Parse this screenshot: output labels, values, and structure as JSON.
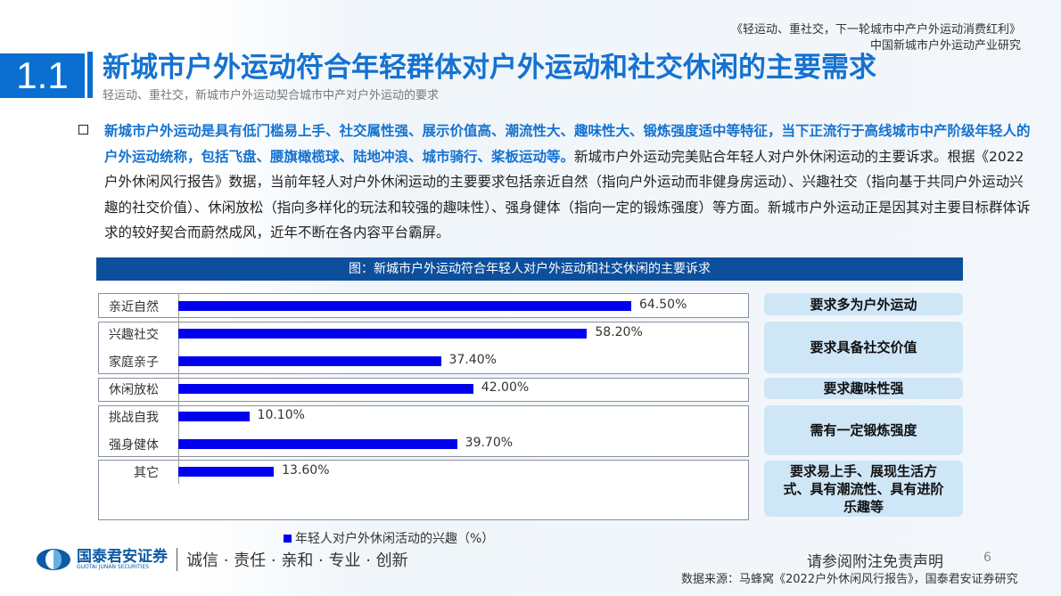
{
  "header": {
    "section_number": "1.1",
    "title": "新城市户外运动符合年轻群体对户外运动和社交休闲的主要需求",
    "subtitle": "轻运动、重社交，新城市户外运动契合城市中产对户外运动的要求",
    "report_title": "《轻运动、重社交，下一轮城市中产户外运动消费红利》",
    "report_subtitle": "中国新城市户外运动产业研究"
  },
  "body": {
    "bold_text": "新城市户外运动是具有低门槛易上手、社交属性强、展示价值高、潮流性大、趣味性大、锻炼强度适中等特征，当下正流行于高线城市中产阶级年轻人的户外运动统称，包括飞盘、腰旗橄榄球、陆地冲浪、城市骑行、桨板运动等。",
    "normal_text": "新城市户外运动完美贴合年轻人对户外休闲运动的主要诉求。根据《2022户外休闲风行报告》数据，当前年轻人对户外休闲运动的主要要求包括亲近自然（指向户外运动而非健身房运动）、兴趣社交（指向基于共同户外运动兴趣的社交价值）、休闲放松（指向多样化的玩法和较强的趣味性）、强身健体（指向一定的锻炼强度）等方面。新城市户外运动正是因其对主要目标群体诉求的较好契合而蔚然成风，近年不断在各内容平台霸屏。"
  },
  "chart_data": {
    "type": "bar",
    "orientation": "horizontal",
    "title": "图：新城市户外运动符合年轻人对户外运动和社交休闲的主要诉求",
    "categories": [
      "亲近自然",
      "兴趣社交",
      "家庭亲子",
      "休闲放松",
      "挑战自我",
      "强身健体",
      "其它"
    ],
    "series": [
      {
        "name": "年轻人对户外休闲活动的兴趣（%）",
        "values": [
          64.5,
          58.2,
          37.4,
          42.0,
          10.1,
          39.7,
          13.6
        ],
        "labels": [
          "64.50%",
          "58.20%",
          "37.40%",
          "42.00%",
          "10.10%",
          "39.70%",
          "13.60%"
        ],
        "color": "#0000ee"
      }
    ],
    "legend": "bottom",
    "xlim": [
      0,
      100
    ]
  },
  "requirements": [
    "要求多为户外运动",
    "要求具备社交价值",
    "要求趣味性强",
    "需有一定锻炼强度",
    "要求易上手、展现生活方式、具有潮流性、具有进阶乐趣等"
  ],
  "footer": {
    "logo_cn": "国泰君安证券",
    "logo_en": "GUOTAI JUNAN SECURITIES",
    "slogan": "诚信 · 责任 · 亲和 · 专业 · 创新",
    "disclaimer": "请参阅附注免责声明",
    "page": "6",
    "source": "数据来源：马蜂窝《2022户外休闲风行报告》，国泰君安证券研究"
  }
}
